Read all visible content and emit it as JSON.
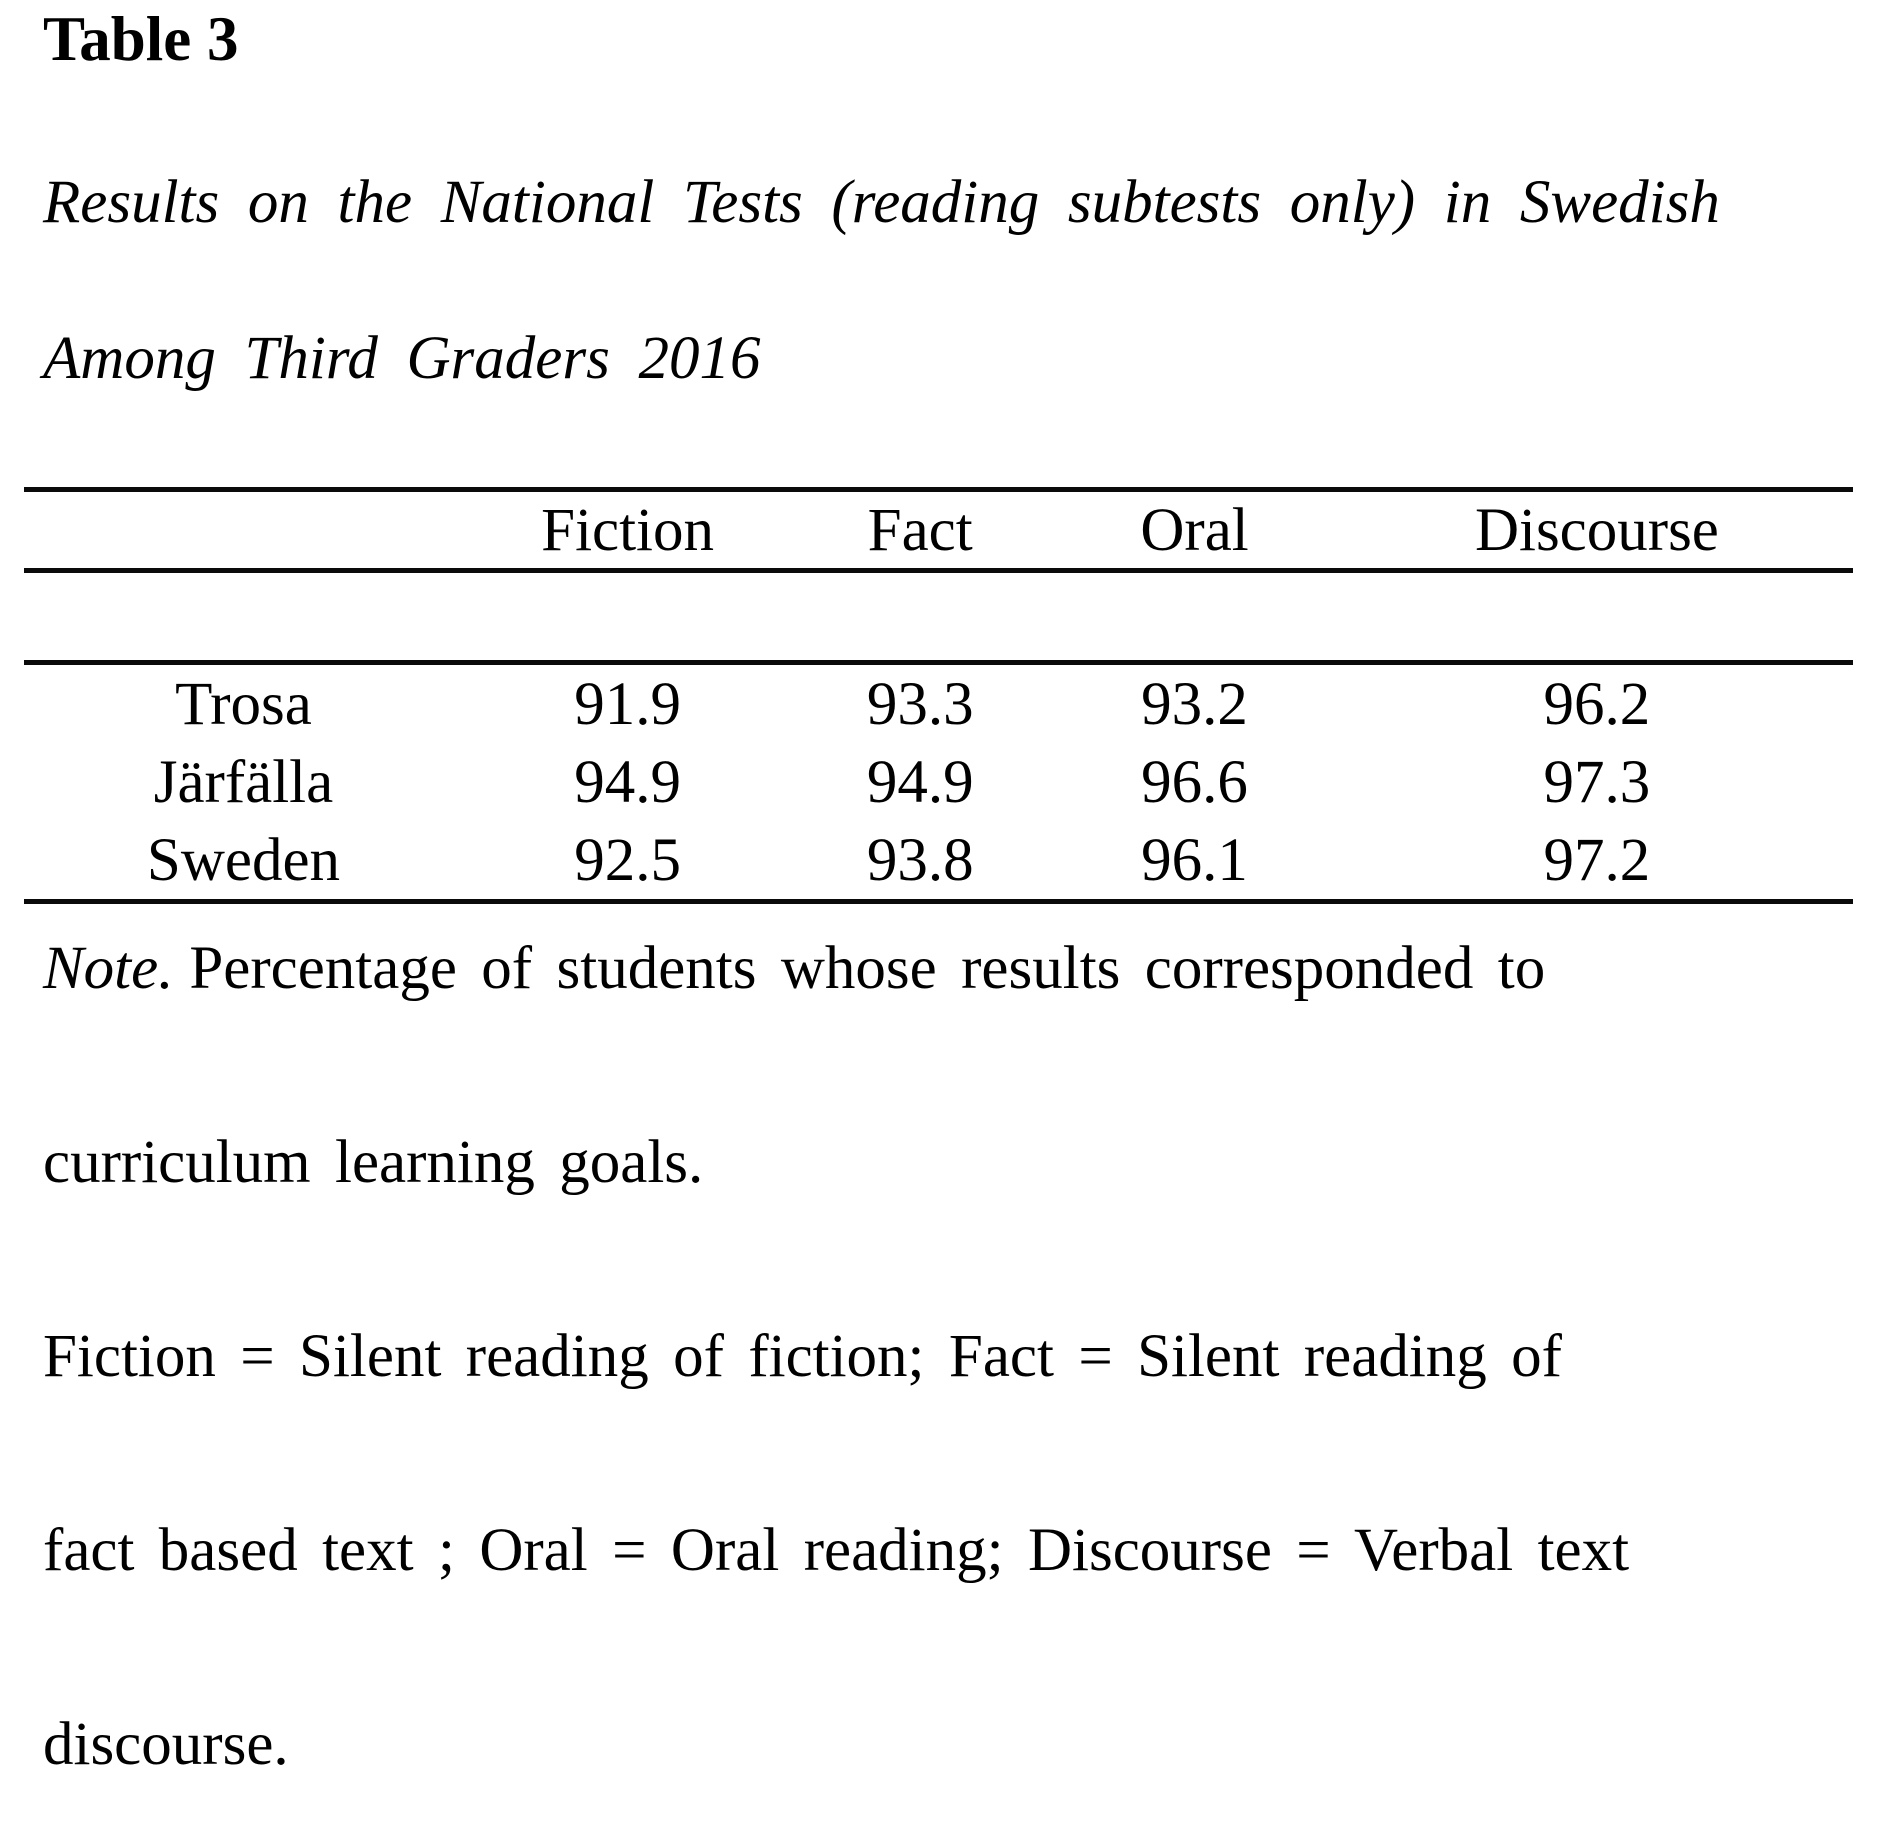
{
  "page": {
    "table_number": "Table 3",
    "title_lines": [
      "Results on the National Tests (reading subtests only) in Swedish",
      "Among Third Graders 2016"
    ]
  },
  "table": {
    "columns": [
      "Fiction",
      "Fact",
      "Oral",
      "Discourse"
    ],
    "rows": [
      {
        "label": "Trosa",
        "values": [
          "91.9",
          "93.3",
          "93.2",
          "96.2"
        ]
      },
      {
        "label": "Järfälla",
        "values": [
          "94.9",
          "94.9",
          "96.6",
          "97.3"
        ]
      },
      {
        "label": "Sweden",
        "values": [
          "92.5",
          "93.8",
          "96.1",
          "97.2"
        ]
      }
    ]
  },
  "note": {
    "prefix": "Note.",
    "first_line_rest": "Percentage of students whose results corresponded to",
    "lines": [
      "curriculum learning goals.",
      "Fiction = Silent reading of fiction; Fact = Silent reading of",
      "fact based text ; Oral = Oral reading; Discourse = Verbal text",
      "discourse."
    ]
  },
  "colors": {
    "text": "#000000",
    "rule": "#0a0a0a",
    "background": "#ffffff"
  }
}
